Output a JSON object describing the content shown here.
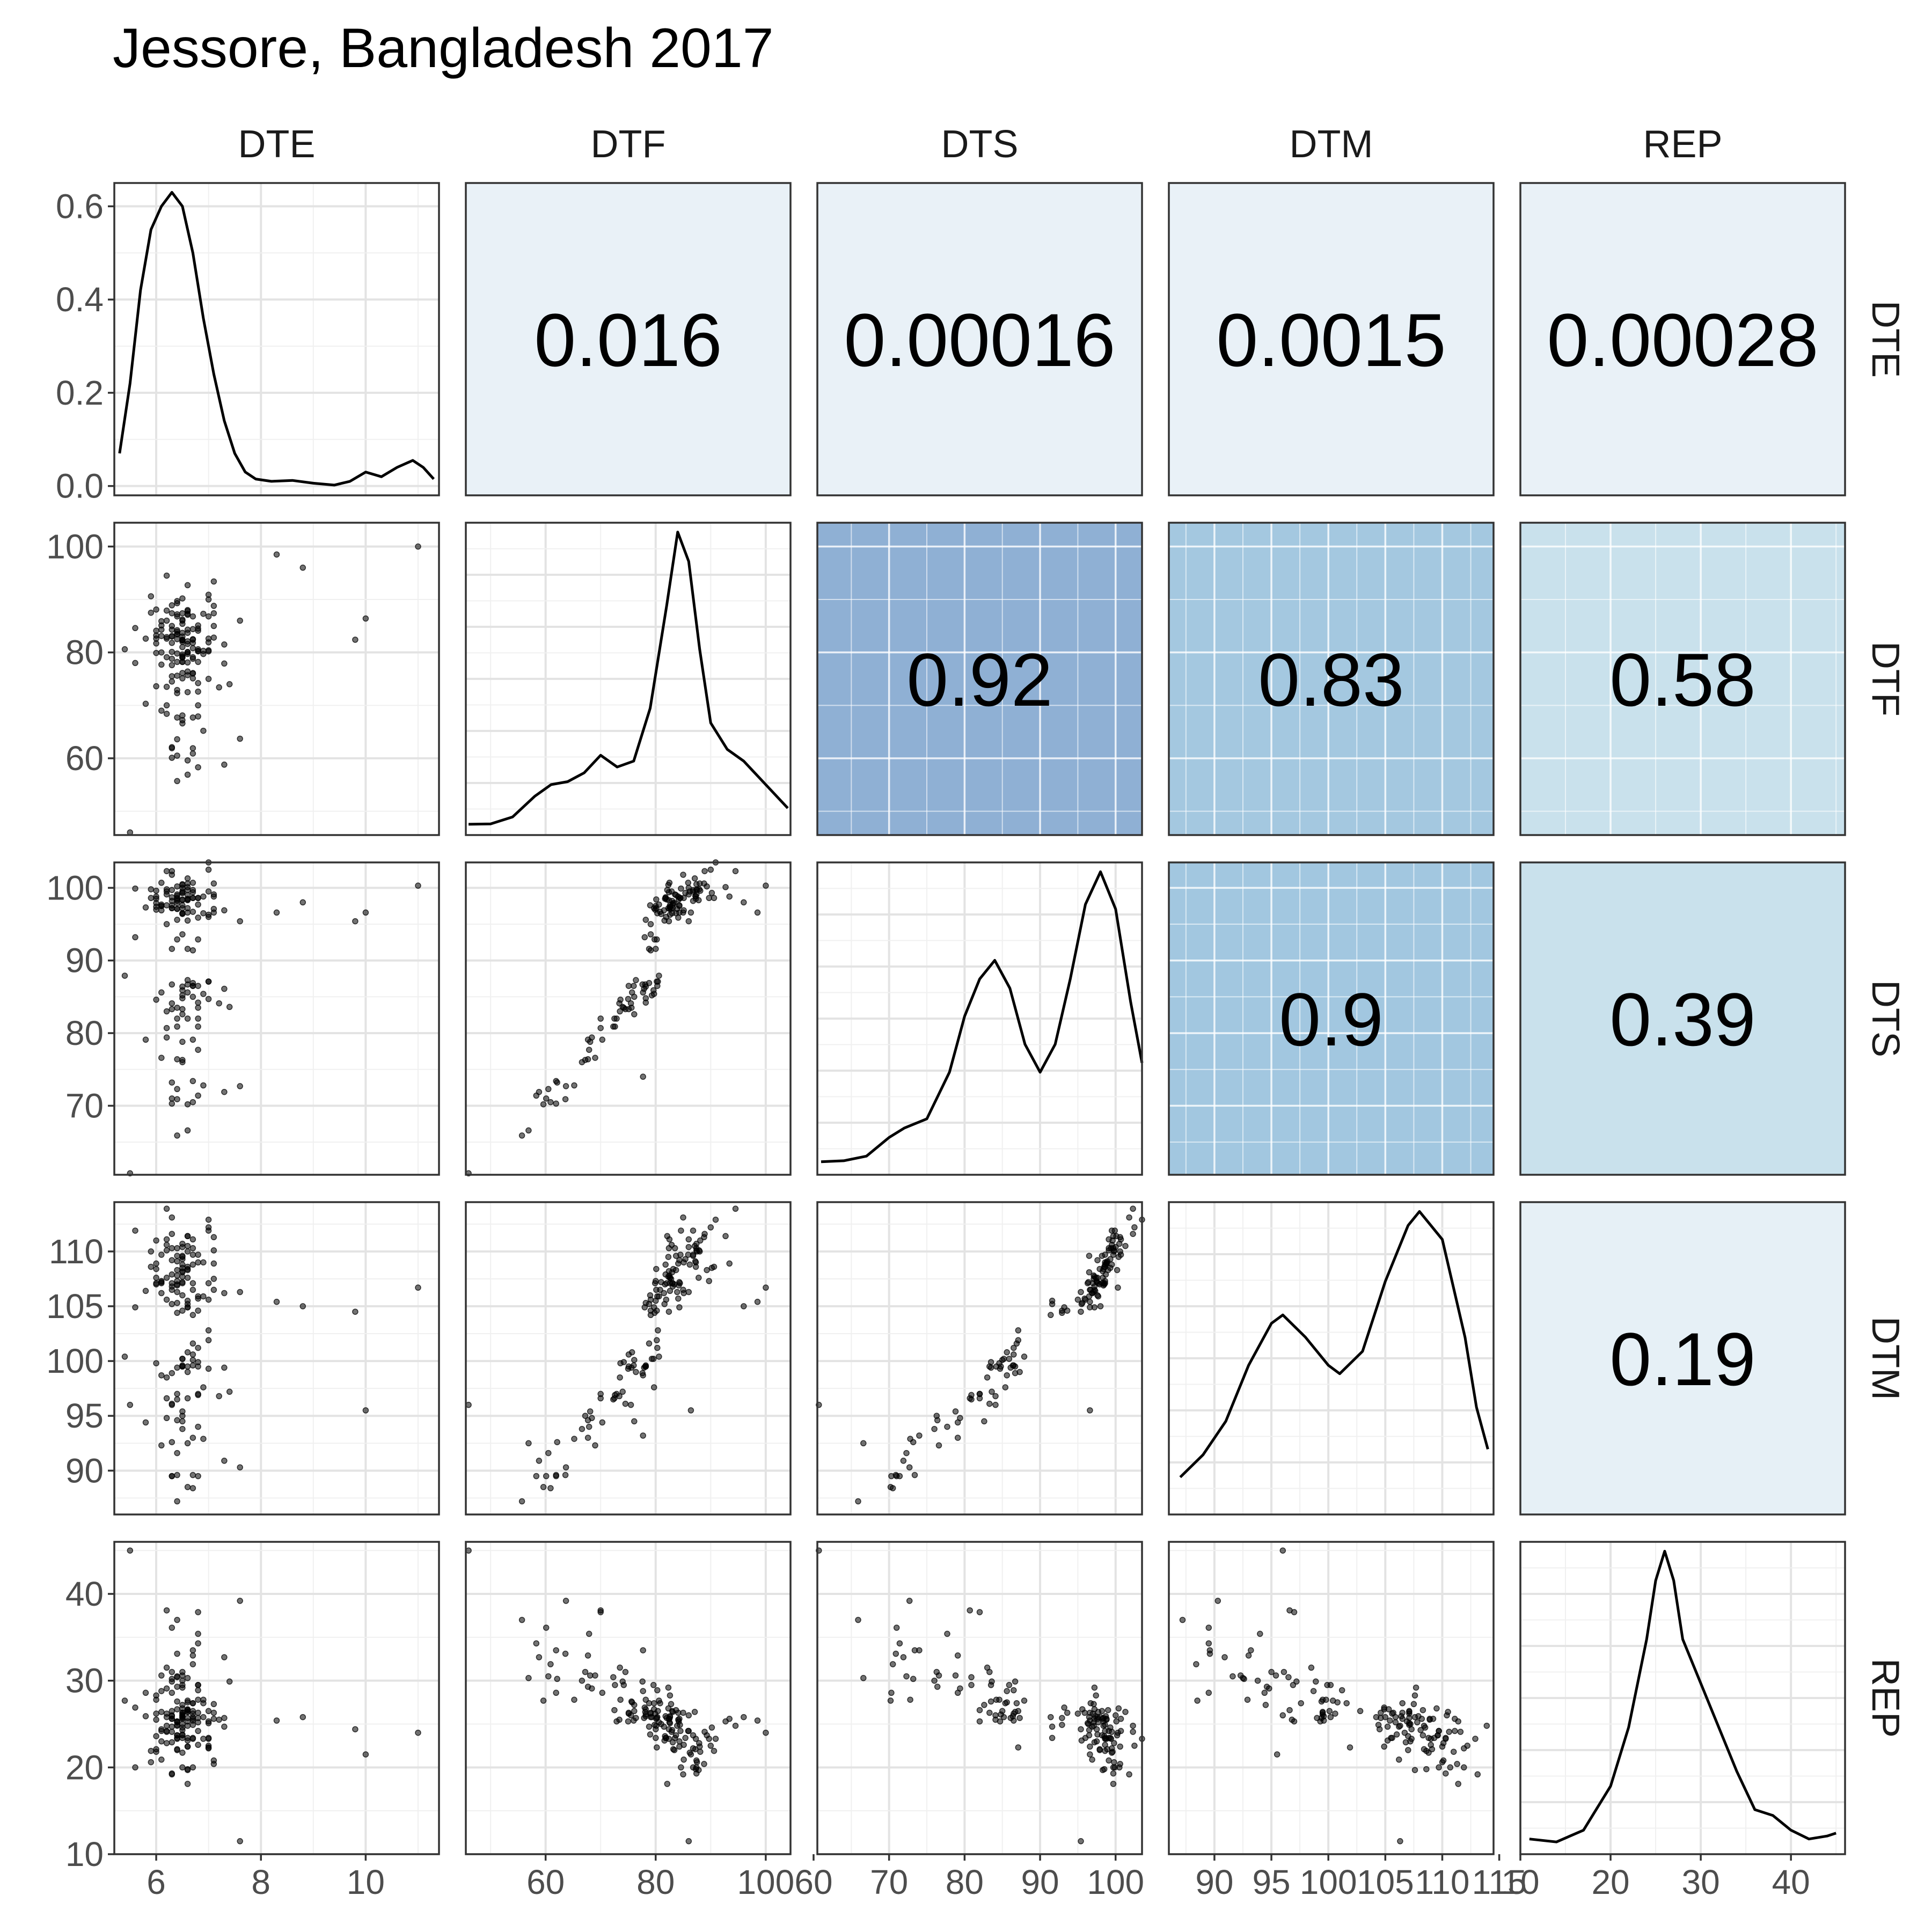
{
  "chart_data": {
    "type": "scatter",
    "title": "Jessore, Bangladesh 2017",
    "variables": [
      "DTE",
      "DTF",
      "DTS",
      "DTM",
      "REP"
    ],
    "ranges": {
      "DTE": [
        5.2,
        11.4
      ],
      "DTF": [
        45.5,
        104.5
      ],
      "DTS": [
        60.5,
        103.5
      ],
      "DTM": [
        86,
        114.5
      ],
      "REP": [
        10,
        46
      ]
    },
    "x_ticks": {
      "DTE": [
        6,
        8,
        10
      ],
      "DTF": [
        60,
        80,
        100
      ],
      "DTS": [
        60,
        70,
        80,
        90,
        100
      ],
      "DTM": [
        90,
        95,
        100,
        105,
        110,
        115
      ],
      "REP": [
        10,
        20,
        30,
        40
      ]
    },
    "y_ticks": {
      "DTE": [
        0.0,
        0.2,
        0.4,
        0.6
      ],
      "DTF": [
        60,
        80,
        100
      ],
      "DTS": [
        60,
        70,
        80,
        90,
        100
      ],
      "DTM": [
        90,
        95,
        100,
        105,
        110,
        115
      ],
      "REP": [
        10,
        20,
        30,
        40
      ]
    },
    "density_ylim": [
      -0.02,
      0.65
    ],
    "density_peak": 0.63,
    "correlations": [
      {
        "row": "DTE",
        "col": "DTF",
        "label": "0.016",
        "r": 0.016
      },
      {
        "row": "DTE",
        "col": "DTS",
        "label": "0.00016",
        "r": 0.00016
      },
      {
        "row": "DTE",
        "col": "DTM",
        "label": "0.0015",
        "r": 0.0015
      },
      {
        "row": "DTE",
        "col": "REP",
        "label": "0.00028",
        "r": 0.00028
      },
      {
        "row": "DTF",
        "col": "DTS",
        "label": "0.92",
        "r": 0.92
      },
      {
        "row": "DTF",
        "col": "DTM",
        "label": "0.83",
        "r": 0.83
      },
      {
        "row": "DTF",
        "col": "REP",
        "label": "0.58",
        "r": 0.58
      },
      {
        "row": "DTS",
        "col": "DTM",
        "label": "0.9",
        "r": 0.9
      },
      {
        "row": "DTS",
        "col": "REP",
        "label": "0.39",
        "r": 0.39
      },
      {
        "row": "DTM",
        "col": "REP",
        "label": "0.19",
        "r": 0.19
      }
    ],
    "fill_colors": {
      "0.92": "#8fb0d4",
      "0.83": "#a4c8e0",
      "0.9": "#a2c7e0",
      "0.58": "#c9e1ec",
      "0.39": "#c9e1ec",
      "0.19": "#e6f0f6",
      "low": "#e9f1f7"
    },
    "density_curves": {
      "DTE": [
        [
          5.3,
          0.07
        ],
        [
          5.5,
          0.22
        ],
        [
          5.7,
          0.42
        ],
        [
          5.9,
          0.55
        ],
        [
          6.1,
          0.6
        ],
        [
          6.3,
          0.63
        ],
        [
          6.5,
          0.6
        ],
        [
          6.7,
          0.5
        ],
        [
          6.9,
          0.36
        ],
        [
          7.1,
          0.24
        ],
        [
          7.3,
          0.14
        ],
        [
          7.5,
          0.07
        ],
        [
          7.7,
          0.03
        ],
        [
          7.9,
          0.015
        ],
        [
          8.2,
          0.01
        ],
        [
          8.6,
          0.012
        ],
        [
          9.0,
          0.006
        ],
        [
          9.4,
          0.002
        ],
        [
          9.7,
          0.01
        ],
        [
          10.0,
          0.03
        ],
        [
          10.3,
          0.02
        ],
        [
          10.6,
          0.04
        ],
        [
          10.9,
          0.055
        ],
        [
          11.1,
          0.04
        ],
        [
          11.3,
          0.015
        ]
      ],
      "DTF": [
        [
          46,
          0.0005
        ],
        [
          50,
          0.0006
        ],
        [
          54,
          0.003
        ],
        [
          58,
          0.01
        ],
        [
          61,
          0.014
        ],
        [
          64,
          0.015
        ],
        [
          67,
          0.018
        ],
        [
          70,
          0.024
        ],
        [
          73,
          0.02
        ],
        [
          76,
          0.022
        ],
        [
          79,
          0.04
        ],
        [
          82,
          0.075
        ],
        [
          84,
          0.1
        ],
        [
          86,
          0.09
        ],
        [
          88,
          0.06
        ],
        [
          90,
          0.035
        ],
        [
          93,
          0.026
        ],
        [
          96,
          0.022
        ],
        [
          99,
          0.016
        ],
        [
          102,
          0.01
        ],
        [
          104,
          0.006
        ]
      ],
      "DTS": [
        [
          61,
          0.0008
        ],
        [
          64,
          0.001
        ],
        [
          67,
          0.002
        ],
        [
          70,
          0.006
        ],
        [
          72,
          0.008
        ],
        [
          75,
          0.01
        ],
        [
          78,
          0.02
        ],
        [
          80,
          0.032
        ],
        [
          82,
          0.04
        ],
        [
          84,
          0.044
        ],
        [
          86,
          0.038
        ],
        [
          88,
          0.026
        ],
        [
          90,
          0.02
        ],
        [
          92,
          0.026
        ],
        [
          94,
          0.04
        ],
        [
          96,
          0.056
        ],
        [
          98,
          0.063
        ],
        [
          100,
          0.055
        ],
        [
          102,
          0.035
        ],
        [
          103.5,
          0.022
        ]
      ],
      "DTM": [
        [
          87,
          0.01
        ],
        [
          89,
          0.018
        ],
        [
          91,
          0.03
        ],
        [
          93,
          0.05
        ],
        [
          95,
          0.065
        ],
        [
          96,
          0.068
        ],
        [
          98,
          0.06
        ],
        [
          100,
          0.05
        ],
        [
          101,
          0.047
        ],
        [
          103,
          0.055
        ],
        [
          105,
          0.08
        ],
        [
          107,
          0.1
        ],
        [
          108,
          0.105
        ],
        [
          110,
          0.095
        ],
        [
          112,
          0.06
        ],
        [
          113,
          0.035
        ],
        [
          114,
          0.02
        ]
      ],
      "REP": [
        [
          11,
          0.002
        ],
        [
          14,
          0.001
        ],
        [
          17,
          0.005
        ],
        [
          20,
          0.02
        ],
        [
          22,
          0.04
        ],
        [
          24,
          0.07
        ],
        [
          25,
          0.09
        ],
        [
          26,
          0.1
        ],
        [
          27,
          0.09
        ],
        [
          28,
          0.07
        ],
        [
          30,
          0.055
        ],
        [
          32,
          0.04
        ],
        [
          34,
          0.025
        ],
        [
          36,
          0.012
        ],
        [
          38,
          0.01
        ],
        [
          40,
          0.005
        ],
        [
          42,
          0.002
        ],
        [
          44,
          0.003
        ],
        [
          45,
          0.004
        ]
      ]
    },
    "points": {
      "DTE": [
        6.6,
        6.8,
        6.4,
        6.1,
        7.0,
        6.6,
        6.4,
        6.9,
        7.3,
        6.4,
        6.7,
        5.6,
        6.5,
        6.3,
        6.6,
        6.7,
        6.5,
        6.1,
        6.6,
        6.5,
        6.0,
        7.0,
        6.4,
        6.8,
        6.5,
        6.1,
        6.4,
        7.3,
        6.6,
        6.0,
        6.2,
        6.3,
        7.1,
        6.7,
        6.7,
        6.2,
        6.7,
        6.8,
        7.1,
        6.4,
        6.0,
        7.1,
        6.5,
        6.1,
        6.4,
        6.3,
        6.5,
        6.7,
        5.6,
        6.5,
        6.3,
        6.6,
        6.3,
        6.0,
        7.0,
        6.3,
        6.5,
        6.3,
        6.2,
        6.6,
        6.8,
        7.1,
        6.3,
        6.3,
        6.4,
        6.5,
        6.2,
        6.8,
        6.0,
        6.6,
        6.5,
        6.5,
        6.7,
        5.8,
        6.9,
        6.5,
        6.2,
        6.0,
        6.4,
        6.4,
        6.6,
        6.5,
        6.4,
        6.0,
        6.6,
        7.1,
        6.6,
        6.9,
        6.3,
        6.4,
        6.7,
        6.5,
        7.0,
        5.9,
        6.5,
        6.4,
        6.8,
        6.3,
        6.4,
        6.5,
        6.2,
        6.6,
        6.5,
        6.5,
        7.0,
        6.4,
        6.6,
        7.0,
        6.7,
        6.8,
        6.5,
        7.4,
        7.2,
        6.3,
        6.4,
        6.7,
        6.3,
        6.1,
        6.8,
        6.7,
        6.9,
        6.7,
        6.3,
        6.7,
        6.1,
        6.2,
        6.7,
        5.4,
        6.6,
        6.5,
        7.0,
        6.5,
        6.3,
        6.4,
        6.6,
        5.8,
        6.5,
        6.5,
        7.0,
        6.6,
        5.9,
        6.8,
        6.2,
        7.3,
        6.1,
        6.8,
        6.8,
        6.4,
        6.8,
        6.2,
        6.6,
        6.6,
        7.6,
        5.5,
        7.6,
        10.0,
        11.0,
        9.8,
        8.8,
        8.3
      ],
      "DTF": [
        56.9,
        74.2,
        67.7,
        80.0,
        81.9,
        87.8,
        63.6,
        65.2,
        77.9,
        72.9,
        76.0,
        84.6,
        83.7,
        61.9,
        76.4,
        60.9,
        81.0,
        69.0,
        75.7,
        90.2,
        79.9,
        82.6,
        60.5,
        78.2,
        79.0,
        83.1,
        82.5,
        58.8,
        79.7,
        73.6,
        82.9,
        84.3,
        82.8,
        81.8,
        82.5,
        68.4,
        86.8,
        72.6,
        88.8,
        83.5,
        83.2,
        85.0,
        82.3,
        77.7,
        79.8,
        87.4,
        87.4,
        79.1,
        78.0,
        82.0,
        75.5,
        84.3,
        78.8,
        88.1,
        90.0,
        81.8,
        86.2,
        62.1,
        73.5,
        88.0,
        84.5,
        87.4,
        83.1,
        80.1,
        84.2,
        78.2,
        87.9,
        80.6,
        82.6,
        80.1,
        79.1,
        82.3,
        80.8,
        70.3,
        87.3,
        83.0,
        79.1,
        84.1,
        83.4,
        89.3,
        80.0,
        75.1,
        78.2,
        81.7,
        59.6,
        93.4,
        83.7,
        80.3,
        88.9,
        86.8,
        76.1,
        85.4,
        75.0,
        87.5,
        82.4,
        75.6,
        85.1,
        83.0,
        72.3,
        67.2,
        82.6,
        87.3,
        79.3,
        78.2,
        86.8,
        83.9,
        78.1,
        80.4,
        84.4,
        80.2,
        79.6,
        74.0,
        73.4,
        77.6,
        89.7,
        78.8,
        74.5,
        85.1,
        84.1,
        75.1,
        79.7,
        67.7,
        85.0,
        61.9,
        85.9,
        94.5,
        82.4,
        80.6,
        72.5,
        66.6,
        80.2,
        76.1,
        60.1,
        55.7,
        92.7,
        82.6,
        86.0,
        68.1,
        90.9,
        87.1,
        90.6,
        67.9,
        86.0,
        81.5,
        84.3,
        58.3,
        80.3,
        87.2,
        70.0,
        70.0,
        81.6,
        82.1,
        86.0,
        46.0,
        63.7,
        86.4,
        100.0,
        82.4,
        96.0,
        98.5,
        77.7
      ],
      "DTS": [
        66.6,
        83.5,
        76.4,
        97.5,
        96.0,
        98.3,
        70.9,
        72.8,
        86.1,
        82.0,
        86.5,
        99.9,
        96.5,
        70.3,
        87.3,
        70.5,
        96.4,
        76.6,
        85.6,
        99.3,
        97.0,
        96.3,
        72.3,
        84.2,
        97.6,
        97.7,
        97.1,
        71.9,
        97.2,
        84.6,
        99.5,
        97.6,
        97.1,
        98.6,
        100.7,
        79.4,
        99.7,
        80.9,
        100.6,
        99.1,
        97.9,
        96.6,
        100.4,
        85.6,
        92.9,
        99.7,
        100.5,
        91.4,
        93.2,
        98.4,
        84.1,
        96.6,
        91.6,
        99.6,
        102.5,
        98.7,
        99.5,
        73.2,
        83.0,
        100.6,
        98.6,
        99.1,
        97.2,
        97.2,
        98.4,
        86.4,
        99.8,
        97.7,
        97.4,
        98.4,
        93.6,
        97.2,
        96.7,
        79.1,
        98.8,
        96.5,
        95.0,
        98.8,
        97.9,
        100.2,
        91.6,
        83.3,
        95.6,
        98.5,
        70.2,
        98.8,
        99.0,
        96.5,
        102.3,
        98.2,
        85.0,
        99.3,
        84.7,
        99.8,
        98.3,
        83.5,
        98.6,
        98.2,
        80.9,
        76.3,
        97.6,
        98.5,
        85.2,
        84.8,
        99.5,
        97.1,
        86.7,
        87.1,
        98.6,
        92.9,
        85.9,
        83.6,
        84.1,
        86.7,
        98.6,
        86.9,
        83.3,
        96.9,
        95.9,
        86.5,
        85.4,
        79.1,
        101.8,
        73.4,
        100.7,
        102.3,
        99.4,
        87.9,
        82.0,
        76.0,
        87.1,
        82.6,
        71.0,
        65.9,
        100.1,
        97.3,
        100.0,
        78.8,
        103.5,
        101.3,
        98.6,
        77.7,
        99.1,
        96.9,
        97.5,
        71.4,
        86.5,
        98.9,
        82.0,
        80.7,
        95.5,
        99.7,
        95.4,
        60.7,
        72.7,
        96.6,
        100.3,
        95.4,
        98.0,
        96.6,
        74.0
      ],
      "DTM": [
        92.5,
        99.9,
        94.6,
        107.3,
        105.6,
        107.6,
        89.6,
        92.9,
        99.4,
        97.0,
        99.6,
        111.9,
        109.6,
        89.5,
        99.0,
        88.4,
        107.2,
        92.3,
        100.8,
        108.5,
        107.1,
        107.1,
        91.6,
        99.5,
        106.0,
        107.1,
        107.8,
        90.9,
        104.9,
        99.8,
        110.6,
        109.2,
        107.5,
        108.8,
        111.1,
        94.8,
        109.7,
        96.9,
        111.3,
        110.3,
        108.4,
        106.5,
        109.5,
        98.7,
        104.4,
        110.3,
        110.7,
        104.2,
        104.9,
        107.1,
        96.0,
        104.9,
        105.2,
        111.0,
        112.2,
        107.9,
        108.8,
        92.6,
        98.5,
        110.0,
        109.7,
        110.1,
        106.8,
        106.5,
        106.9,
        99.6,
        110.1,
        105.9,
        107.6,
        108.4,
        104.6,
        107.7,
        106.5,
        94.4,
        109.0,
        108.1,
        105.6,
        108.9,
        107.0,
        108.3,
        105.5,
        99.5,
        105.3,
        107.0,
        88.5,
        108.9,
        108.3,
        105.9,
        111.6,
        109.6,
        100.1,
        109.3,
        99.3,
        110.0,
        108.2,
        99.4,
        109.0,
        107.1,
        96.5,
        95.0,
        107.6,
        108.6,
        100.2,
        99.5,
        111.9,
        106.3,
        99.5,
        102.8,
        107.1,
        104.6,
        100.2,
        97.2,
        96.8,
        98.9,
        107.3,
        101.6,
        96.1,
        106.2,
        105.7,
        100.6,
        97.6,
        93.0,
        113.1,
        89.6,
        109.7,
        113.9,
        110.3,
        100.4,
        96.6,
        93.8,
        101.9,
        94.5,
        89.5,
        87.2,
        111.4,
        106.4,
        110.4,
        95.4,
        112.9,
        110.5,
        108.6,
        94.0,
        111.1,
        106.2,
        107.2,
        89.5,
        101.2,
        109.1,
        97.0,
        96.6,
        105.2,
        111.4,
        106.3,
        96.0,
        90.3,
        95.5,
        106.7,
        104.5,
        105.0,
        105.4,
        93.2
      ],
      "REP": [
        30.3,
        29.5,
        29.3,
        24.4,
        23.4,
        19.7,
        33.1,
        27.8,
        25.7,
        25.3,
        25.4,
        20.0,
        23.7,
        28.6,
        25.7,
        31.9,
        25.0,
        30.6,
        27.5,
        24.6,
        26.2,
        25.1,
        30.5,
        27.8,
        23.8,
        26.4,
        25.2,
        32.7,
        26.7,
        27.8,
        24.1,
        25.6,
        27.3,
        23.4,
        25.6,
        29.1,
        20.0,
        29.5,
        20.4,
        23.4,
        22.1,
        26.3,
        26.8,
        28.8,
        24.9,
        19.3,
        20.0,
        25.8,
        26.9,
        25.7,
        26.0,
        22.4,
        24.7,
        21.8,
        22.5,
        25.9,
        21.7,
        30.2,
        31.5,
        22.4,
        24.2,
        20.8,
        22.9,
        25.6,
        25.3,
        25.9,
        22.8,
        25.2,
        28.3,
        24.8,
        26.3,
        29.2,
        27.4,
        28.6,
        23.3,
        24.3,
        26.2,
        25.5,
        22.0,
        23.7,
        23.4,
        26.3,
        26.7,
        23.6,
        27.7,
        25.6,
        26.6,
        25.8,
        24.1,
        23.7,
        26.5,
        23.4,
        25.3,
        20.6,
        25.6,
        27.6,
        22.6,
        26.5,
        30.4,
        31.0,
        25.8,
        19.8,
        25.8,
        26.1,
        22.2,
        24.8,
        26.4,
        26.5,
        24.9,
        25.7,
        29.5,
        29.9,
        25.5,
        29.9,
        23.3,
        27.4,
        31.0,
        20.9,
        26.3,
        26.2,
        27.4,
        32.9,
        19.2,
        33.5,
        24.2,
        24.8,
        23.3,
        27.7,
        26.6,
        30.0,
        22.3,
        27.2,
        36.1,
        37.0,
        25.3,
        25.9,
        26.0,
        30.6,
        23.3,
        26.4,
        21.9,
        35.4,
        24.2,
        24.7,
        23.0,
        34.3,
        28.9,
        22.1,
        37.9,
        38.1,
        23.1,
        18.1,
        11.5,
        45.0,
        39.2,
        21.5,
        24.0,
        24.4,
        25.8,
        25.4,
        33.5
      ]
    }
  }
}
